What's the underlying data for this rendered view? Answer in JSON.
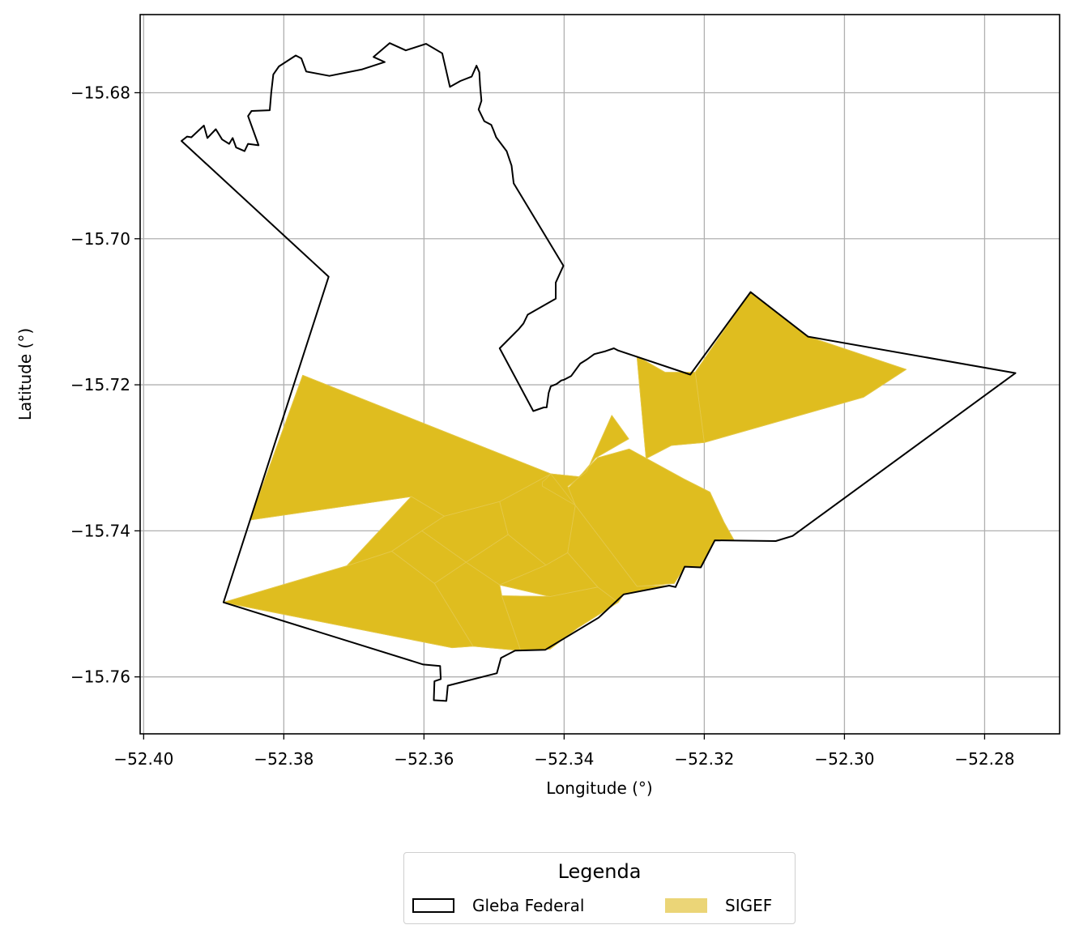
{
  "chart_data": {
    "type": "map",
    "xlabel": "Longitude (°)",
    "ylabel": "Latitude (°)",
    "xlim": [
      -52.4005,
      -52.2693
    ],
    "ylim": [
      -15.7678,
      -15.6693
    ],
    "xticks": [
      -52.4,
      -52.38,
      -52.36,
      -52.34,
      -52.32,
      -52.3,
      -52.28
    ],
    "xtick_labels": [
      "−52.40",
      "−52.38",
      "−52.36",
      "−52.34",
      "−52.32",
      "−52.30",
      "−52.28"
    ],
    "yticks": [
      -15.68,
      -15.7,
      -15.72,
      -15.74,
      -15.76
    ],
    "ytick_labels": [
      "−15.68",
      "−15.70",
      "−15.72",
      "−15.74",
      "−15.76"
    ],
    "grid": true,
    "legend": {
      "title": "Legenda",
      "placement": "bottom-center",
      "entries": [
        {
          "label": "Gleba Federal",
          "style": "outline",
          "color": "#000000"
        },
        {
          "label": "SIGEF",
          "style": "fill",
          "color": "#ebd577"
        }
      ]
    },
    "colors": {
      "sigef_fill": "#dfbd1f",
      "gleba_edge": "#000000",
      "grid": "#b0b0b0"
    },
    "gleba_federal": [
      [
        -52.3946,
        -15.6866
      ],
      [
        -52.3938,
        -15.686
      ],
      [
        -52.3932,
        -15.6861
      ],
      [
        -52.3914,
        -15.6845
      ],
      [
        -52.3909,
        -15.6862
      ],
      [
        -52.3897,
        -15.685
      ],
      [
        -52.3888,
        -15.6864
      ],
      [
        -52.3878,
        -15.687
      ],
      [
        -52.3873,
        -15.6862
      ],
      [
        -52.3868,
        -15.6875
      ],
      [
        -52.3856,
        -15.688
      ],
      [
        -52.3851,
        -15.687
      ],
      [
        -52.3836,
        -15.6872
      ],
      [
        -52.3851,
        -15.6832
      ],
      [
        -52.3846,
        -15.6825
      ],
      [
        -52.382,
        -15.6824
      ],
      [
        -52.3818,
        -15.68
      ],
      [
        -52.3815,
        -15.6775
      ],
      [
        -52.3807,
        -15.6764
      ],
      [
        -52.3783,
        -15.6749
      ],
      [
        -52.3775,
        -15.6753
      ],
      [
        -52.3768,
        -15.6771
      ],
      [
        -52.3735,
        -15.6777
      ],
      [
        -52.3688,
        -15.6768
      ],
      [
        -52.3656,
        -15.6758
      ],
      [
        -52.3672,
        -15.6751
      ],
      [
        -52.3649,
        -15.6732
      ],
      [
        -52.3626,
        -15.6742
      ],
      [
        -52.3597,
        -15.6733
      ],
      [
        -52.3574,
        -15.6746
      ],
      [
        -52.3563,
        -15.6792
      ],
      [
        -52.3548,
        -15.6784
      ],
      [
        -52.3532,
        -15.6778
      ],
      [
        -52.3525,
        -15.6763
      ],
      [
        -52.3521,
        -15.6772
      ],
      [
        -52.352,
        -15.679
      ],
      [
        -52.3518,
        -15.6811
      ],
      [
        -52.3522,
        -15.6823
      ],
      [
        -52.3514,
        -15.6839
      ],
      [
        -52.3504,
        -15.6844
      ],
      [
        -52.3501,
        -15.6851
      ],
      [
        -52.3497,
        -15.6861
      ],
      [
        -52.3482,
        -15.688
      ],
      [
        -52.3475,
        -15.69
      ],
      [
        -52.3472,
        -15.6924
      ],
      [
        -52.3401,
        -15.7037
      ],
      [
        -52.3412,
        -15.706
      ],
      [
        -52.3412,
        -15.7082
      ],
      [
        -52.3452,
        -15.7104
      ],
      [
        -52.3458,
        -15.7116
      ],
      [
        -52.3465,
        -15.7124
      ],
      [
        -52.3492,
        -15.715
      ],
      [
        -52.3444,
        -15.7236
      ],
      [
        -52.3429,
        -15.7231
      ],
      [
        -52.3425,
        -15.7231
      ],
      [
        -52.3422,
        -15.7211
      ],
      [
        -52.3419,
        -15.7202
      ],
      [
        -52.3411,
        -15.7199
      ],
      [
        -52.3404,
        -15.7194
      ],
      [
        -52.34,
        -15.7193
      ],
      [
        -52.339,
        -15.7188
      ],
      [
        -52.3377,
        -15.7171
      ],
      [
        -52.3367,
        -15.7165
      ],
      [
        -52.3357,
        -15.7158
      ],
      [
        -52.3341,
        -15.7154
      ],
      [
        -52.3329,
        -15.715
      ],
      [
        -52.3323,
        -15.7153
      ],
      [
        -52.322,
        -15.7186
      ],
      [
        -52.3134,
        -15.7073
      ],
      [
        -52.3052,
        -15.7134
      ],
      [
        -52.2756,
        -15.7184
      ],
      [
        -52.3074,
        -15.7407
      ],
      [
        -52.3098,
        -15.7414
      ],
      [
        -52.3185,
        -15.7413
      ],
      [
        -52.3205,
        -15.745
      ],
      [
        -52.3228,
        -15.7449
      ],
      [
        -52.3241,
        -15.7477
      ],
      [
        -52.325,
        -15.7475
      ],
      [
        -52.3315,
        -15.7487
      ],
      [
        -52.3351,
        -15.7519
      ],
      [
        -52.3427,
        -15.7563
      ],
      [
        -52.347,
        -15.7564
      ],
      [
        -52.349,
        -15.7574
      ],
      [
        -52.3496,
        -15.7595
      ],
      [
        -52.3566,
        -15.7612
      ],
      [
        -52.3568,
        -15.7633
      ],
      [
        -52.3586,
        -15.7632
      ],
      [
        -52.3585,
        -15.7606
      ],
      [
        -52.3576,
        -15.7603
      ],
      [
        -52.3577,
        -15.7585
      ],
      [
        -52.3601,
        -15.7583
      ],
      [
        -52.3886,
        -15.7498
      ],
      [
        -52.3736,
        -15.7052
      ],
      [
        -52.3946,
        -15.6866
      ]
    ],
    "sigef_parcels": [
      [
        [
          -52.3773,
          -15.7187
        ],
        [
          -52.3419,
          -15.7322
        ],
        [
          -52.3492,
          -15.736
        ],
        [
          -52.3571,
          -15.738
        ],
        [
          -52.3618,
          -15.7353
        ],
        [
          -52.3848,
          -15.7385
        ]
      ],
      [
        [
          -52.3618,
          -15.7353
        ],
        [
          -52.3571,
          -15.738
        ],
        [
          -52.3603,
          -15.74
        ],
        [
          -52.3646,
          -15.7428
        ],
        [
          -52.371,
          -15.7448
        ]
      ],
      [
        [
          -52.3886,
          -15.7498
        ],
        [
          -52.371,
          -15.7448
        ],
        [
          -52.3646,
          -15.7428
        ],
        [
          -52.3585,
          -15.7472
        ],
        [
          -52.353,
          -15.7558
        ],
        [
          -52.356,
          -15.756
        ]
      ],
      [
        [
          -52.3646,
          -15.7428
        ],
        [
          -52.3603,
          -15.74
        ],
        [
          -52.354,
          -15.7443
        ],
        [
          -52.3585,
          -15.7472
        ]
      ],
      [
        [
          -52.3585,
          -15.7472
        ],
        [
          -52.354,
          -15.7443
        ],
        [
          -52.3492,
          -15.7474
        ],
        [
          -52.3489,
          -15.7489
        ],
        [
          -52.3462,
          -15.7564
        ],
        [
          -52.353,
          -15.7558
        ]
      ],
      [
        [
          -52.3603,
          -15.74
        ],
        [
          -52.3571,
          -15.738
        ],
        [
          -52.3492,
          -15.736
        ],
        [
          -52.348,
          -15.7405
        ],
        [
          -52.354,
          -15.7443
        ]
      ],
      [
        [
          -52.354,
          -15.7443
        ],
        [
          -52.348,
          -15.7405
        ],
        [
          -52.3426,
          -15.7447
        ],
        [
          -52.3492,
          -15.7474
        ]
      ],
      [
        [
          -52.3492,
          -15.7474
        ],
        [
          -52.3426,
          -15.7447
        ],
        [
          -52.3395,
          -15.743
        ],
        [
          -52.3352,
          -15.7477
        ],
        [
          -52.342,
          -15.749
        ]
      ],
      [
        [
          -52.342,
          -15.749
        ],
        [
          -52.3352,
          -15.7477
        ],
        [
          -52.3323,
          -15.7498
        ],
        [
          -52.3381,
          -15.7533
        ],
        [
          -52.342,
          -15.7562
        ],
        [
          -52.3462,
          -15.7564
        ],
        [
          -52.3489,
          -15.7489
        ]
      ],
      [
        [
          -52.3492,
          -15.736
        ],
        [
          -52.3419,
          -15.7322
        ],
        [
          -52.3384,
          -15.7365
        ],
        [
          -52.3395,
          -15.743
        ],
        [
          -52.3426,
          -15.7447
        ],
        [
          -52.348,
          -15.7405
        ]
      ],
      [
        [
          -52.3352,
          -15.73
        ],
        [
          -52.3307,
          -15.7288
        ],
        [
          -52.3229,
          -15.7329
        ],
        [
          -52.3192,
          -15.7347
        ],
        [
          -52.3172,
          -15.7388
        ],
        [
          -52.3158,
          -15.7412
        ],
        [
          -52.3185,
          -15.7413
        ],
        [
          -52.3205,
          -15.745
        ],
        [
          -52.3228,
          -15.7449
        ],
        [
          -52.3243,
          -15.7472
        ],
        [
          -52.3296,
          -15.7476
        ],
        [
          -52.3384,
          -15.7365
        ],
        [
          -52.3394,
          -15.7341
        ]
      ],
      [
        [
          -52.3384,
          -15.7365
        ],
        [
          -52.3296,
          -15.7476
        ],
        [
          -52.325,
          -15.7475
        ],
        [
          -52.3315,
          -15.7487
        ],
        [
          -52.3323,
          -15.7498
        ],
        [
          -52.3352,
          -15.7477
        ],
        [
          -52.3395,
          -15.743
        ]
      ],
      [
        [
          -52.3419,
          -15.7322
        ],
        [
          -52.3426,
          -15.7329
        ],
        [
          -52.3431,
          -15.7333
        ],
        [
          -52.3431,
          -15.7339
        ],
        [
          -52.3384,
          -15.7365
        ],
        [
          -52.3394,
          -15.7341
        ],
        [
          -52.3395,
          -15.7339
        ],
        [
          -52.3368,
          -15.7319
        ],
        [
          -52.3332,
          -15.7242
        ],
        [
          -52.3308,
          -15.7274
        ],
        [
          -52.3355,
          -15.73
        ],
        [
          -52.3378,
          -15.7326
        ]
      ],
      [
        [
          -52.3256,
          -15.7183
        ],
        [
          -52.3213,
          -15.7183
        ],
        [
          -52.32,
          -15.7279
        ],
        [
          -52.3247,
          -15.7283
        ],
        [
          -52.3283,
          -15.7301
        ],
        [
          -52.3296,
          -15.7161
        ]
      ],
      [
        [
          -52.3213,
          -15.7183
        ],
        [
          -52.3134,
          -15.7073
        ],
        [
          -52.3052,
          -15.7134
        ],
        [
          -52.2912,
          -15.7179
        ],
        [
          -52.2973,
          -15.7217
        ],
        [
          -52.32,
          -15.7279
        ]
      ]
    ]
  }
}
